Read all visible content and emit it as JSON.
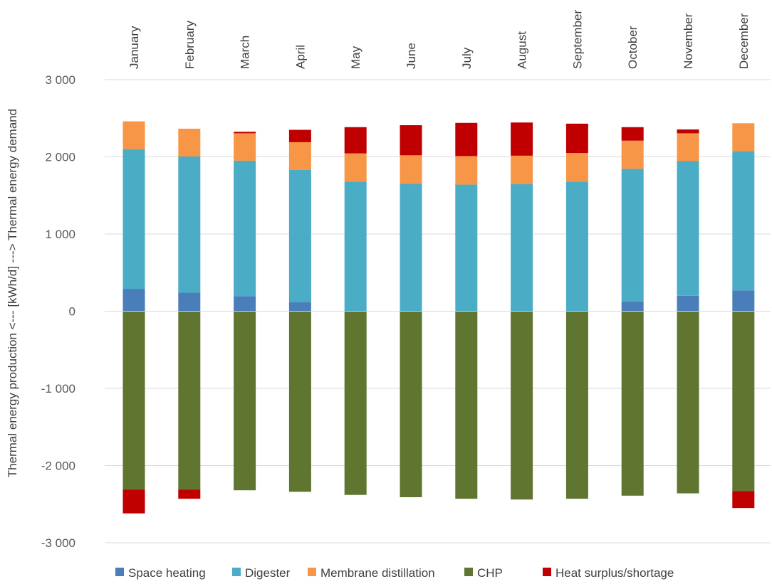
{
  "chart_data": {
    "type": "bar",
    "stacked": true,
    "title": "",
    "xlabel": "",
    "ylabel": "Thermal energy production <--- [kWh/d] ---> Thermal energy demand",
    "ylim": [
      -3000,
      3000
    ],
    "yticks": [
      3000,
      2000,
      1000,
      0,
      -1000,
      -2000,
      -3000
    ],
    "ytick_labels": [
      "3 000",
      "2 000",
      "1 000",
      "0",
      "-1 000",
      "-2 000",
      "-3 000"
    ],
    "grid": true,
    "legend_position": "bottom",
    "categories": [
      "January",
      "February",
      "March",
      "April",
      "May",
      "June",
      "July",
      "August",
      "September",
      "October",
      "November",
      "December"
    ],
    "series": [
      {
        "name": "Space heating",
        "color": "#4a7ebb",
        "values": [
          290,
          240,
          195,
          115,
          0,
          0,
          0,
          0,
          0,
          125,
          200,
          270
        ]
      },
      {
        "name": "Digester",
        "color": "#4bacc6",
        "values": [
          1810,
          1765,
          1755,
          1715,
          1680,
          1650,
          1640,
          1645,
          1680,
          1720,
          1745,
          1805
        ]
      },
      {
        "name": "Membrane distillation",
        "color": "#f79646",
        "values": [
          360,
          360,
          355,
          360,
          365,
          370,
          370,
          370,
          370,
          365,
          360,
          360
        ]
      },
      {
        "name": "CHP",
        "color": "#5f7530",
        "values": [
          -2310,
          -2310,
          -2320,
          -2340,
          -2380,
          -2410,
          -2430,
          -2440,
          -2430,
          -2390,
          -2360,
          -2330
        ]
      },
      {
        "name": "Heat surplus/shortage",
        "color": "#c00000",
        "values": [
          -310,
          -120,
          20,
          160,
          340,
          390,
          430,
          430,
          380,
          175,
          50,
          -220
        ]
      }
    ]
  }
}
